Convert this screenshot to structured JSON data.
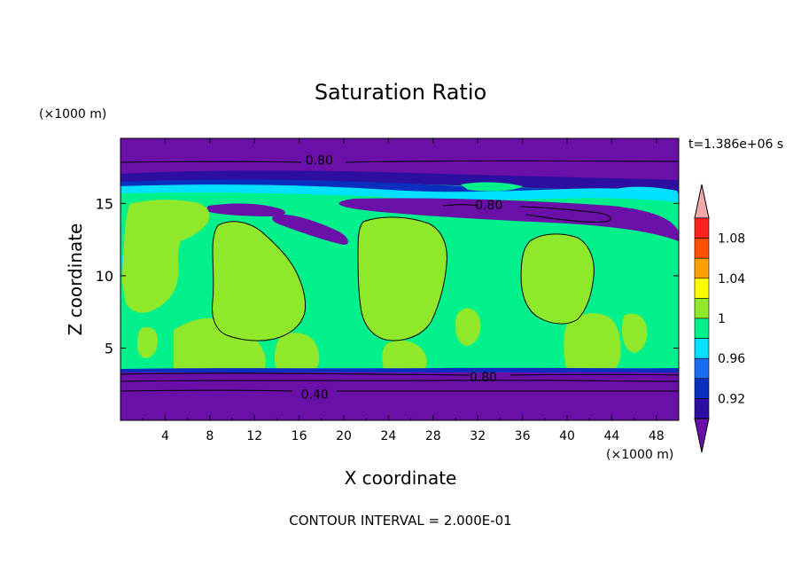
{
  "chart_data": {
    "type": "heatmap",
    "title": "Saturation Ratio",
    "xlabel": "X coordinate",
    "ylabel": "Z coordinate",
    "x_unit_label": "(×1000 m)",
    "y_unit_label": "(×1000 m)",
    "time_label": "t=1.386e+06 s",
    "footer": "CONTOUR INTERVAL = 2.000E-01",
    "xlim": [
      0,
      50
    ],
    "ylim": [
      0,
      19.5
    ],
    "x_ticks": [
      4,
      8,
      12,
      16,
      20,
      24,
      28,
      32,
      36,
      40,
      44,
      48
    ],
    "y_ticks": [
      5,
      10,
      15
    ],
    "colorbar": {
      "colors": [
        "#6a0fa8",
        "#2c0fa0",
        "#0a2fbe",
        "#1a6cf0",
        "#00e0ff",
        "#00f08c",
        "#8fe82a",
        "#ffff00",
        "#ffa000",
        "#ff5000",
        "#ff2020",
        "#f4a8a8"
      ],
      "labels": [
        "0.92",
        "0.96",
        "1",
        "1.04",
        "1.08"
      ]
    },
    "contour_labels": [
      {
        "text": "0.80",
        "x": 17.8,
        "z": 18.0
      },
      {
        "text": "0.80",
        "x": 33.0,
        "z": 14.9
      },
      {
        "text": "0.80",
        "x": 32.5,
        "z": 3.0
      },
      {
        "text": "0.40",
        "x": 17.4,
        "z": 1.8
      }
    ]
  }
}
